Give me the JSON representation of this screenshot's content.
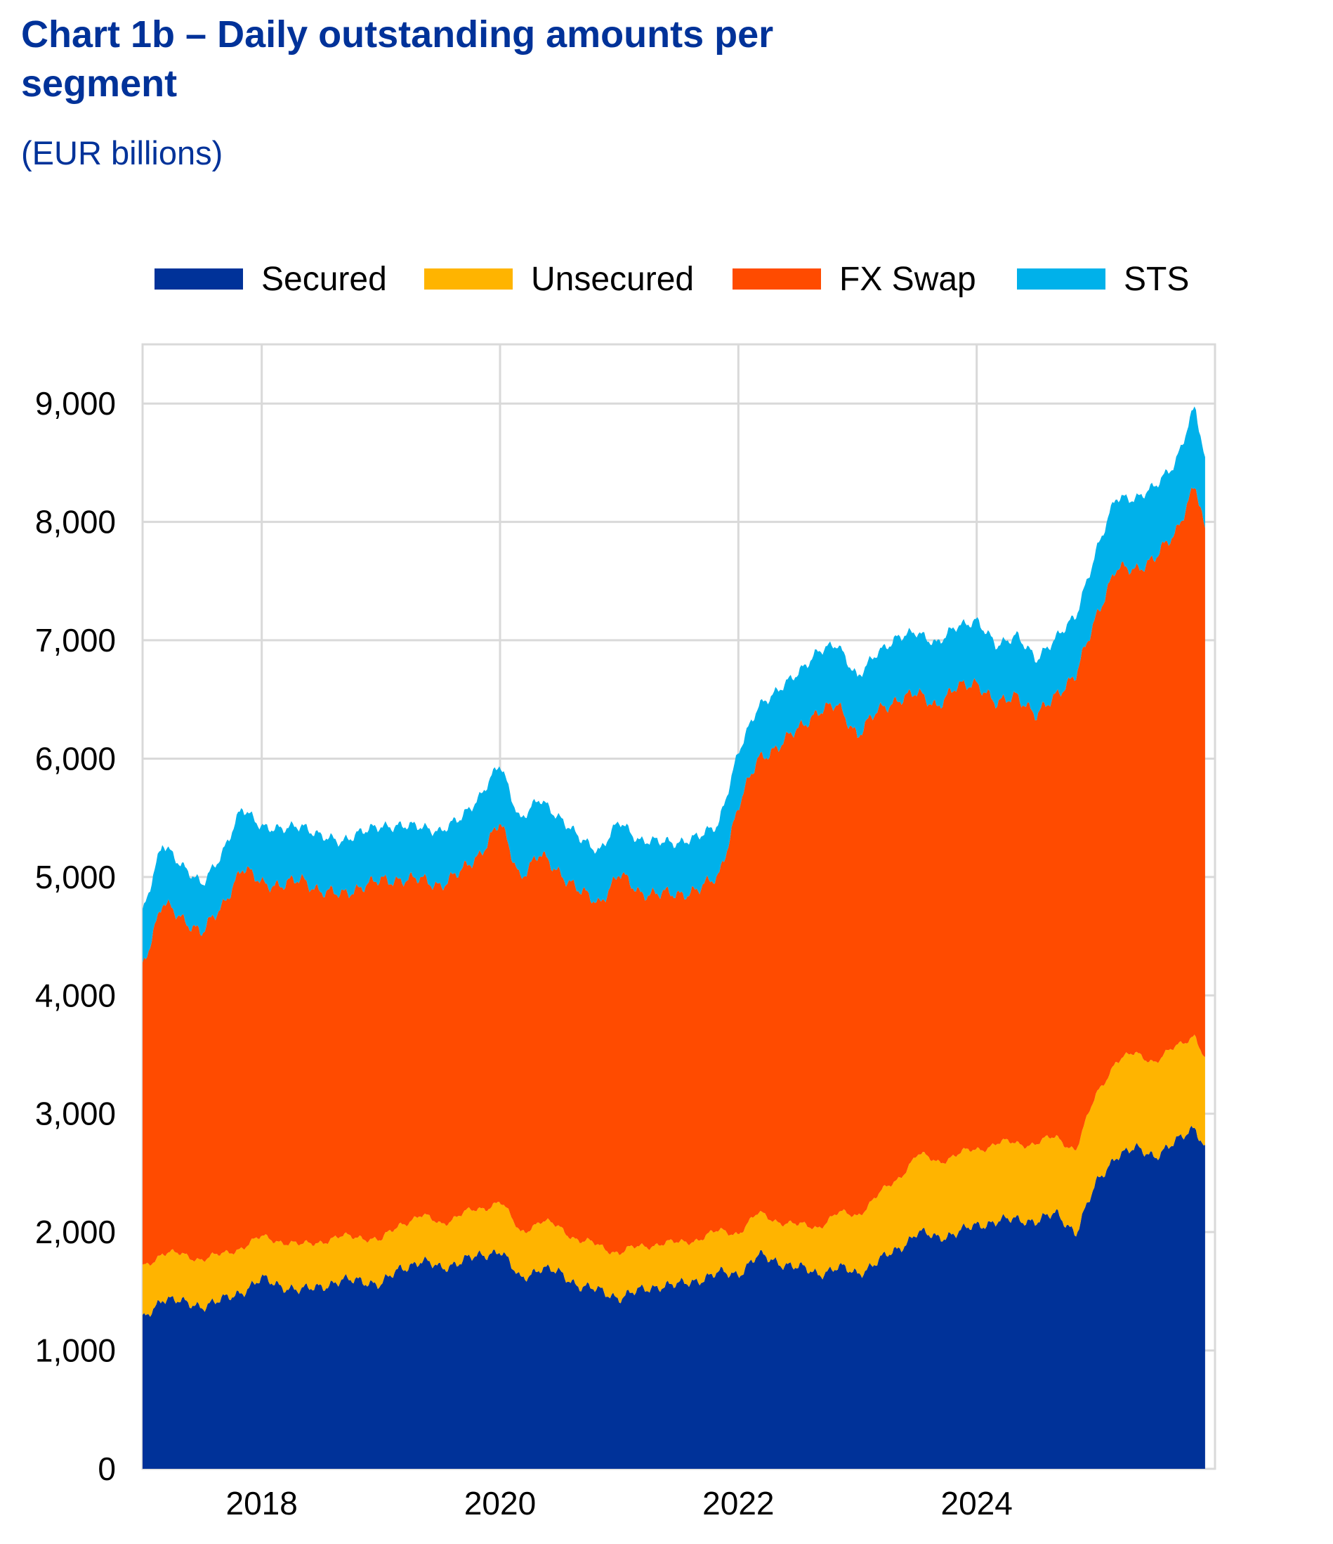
{
  "title": "Chart 1b – Daily outstanding amounts per segment",
  "subtitle": "(EUR billions)",
  "colors": {
    "secured": "#003299",
    "unsecured": "#FFB400",
    "fx_swap": "#FF4B00",
    "sts": "#00B1EA",
    "grid": "#D9D9D9",
    "title": "#003299"
  },
  "chart_data": {
    "type": "area",
    "stacked": true,
    "title": "Chart 1b – Daily outstanding amounts per segment",
    "ylabel": "(EUR billions)",
    "xlabel": "",
    "x_ticks": [
      "2018",
      "2020",
      "2022",
      "2024"
    ],
    "y_ticks": [
      "0",
      "1,000",
      "2,000",
      "3,000",
      "4,000",
      "5,000",
      "6,000",
      "7,000",
      "8,000",
      "9,000"
    ],
    "ylim": [
      0,
      9500
    ],
    "xlim": [
      "2017-01",
      "2025-12"
    ],
    "grid": true,
    "legend_position": "top",
    "x": [
      "2017-01",
      "2017-03",
      "2017-05",
      "2017-07",
      "2017-09",
      "2017-11",
      "2018-01",
      "2018-03",
      "2018-05",
      "2018-07",
      "2018-09",
      "2018-11",
      "2019-01",
      "2019-03",
      "2019-05",
      "2019-07",
      "2019-09",
      "2019-11",
      "2020-01",
      "2020-03",
      "2020-05",
      "2020-07",
      "2020-09",
      "2020-11",
      "2021-01",
      "2021-03",
      "2021-05",
      "2021-07",
      "2021-09",
      "2021-11",
      "2022-01",
      "2022-03",
      "2022-05",
      "2022-07",
      "2022-09",
      "2022-11",
      "2023-01",
      "2023-03",
      "2023-05",
      "2023-07",
      "2023-09",
      "2023-11",
      "2024-01",
      "2024-03",
      "2024-05",
      "2024-07",
      "2024-09",
      "2024-11",
      "2025-01",
      "2025-03",
      "2025-05",
      "2025-07",
      "2025-09",
      "2025-11",
      "2025-12"
    ],
    "series": [
      {
        "name": "Secured",
        "color": "#003299",
        "values": [
          1250,
          1450,
          1400,
          1380,
          1420,
          1500,
          1600,
          1550,
          1500,
          1550,
          1580,
          1600,
          1550,
          1700,
          1750,
          1700,
          1750,
          1800,
          1850,
          1600,
          1700,
          1650,
          1550,
          1500,
          1450,
          1500,
          1550,
          1550,
          1600,
          1650,
          1650,
          1800,
          1750,
          1700,
          1650,
          1700,
          1650,
          1750,
          1850,
          2000,
          1950,
          2000,
          2050,
          2100,
          2100,
          2100,
          2150,
          2000,
          2400,
          2650,
          2700,
          2650,
          2750,
          2900,
          2700
        ]
      },
      {
        "name": "Unsecured",
        "color": "#FFB400",
        "values": [
          450,
          380,
          400,
          400,
          380,
          380,
          350,
          380,
          380,
          380,
          370,
          370,
          370,
          380,
          380,
          380,
          390,
          400,
          410,
          400,
          390,
          390,
          380,
          380,
          380,
          370,
          360,
          350,
          350,
          350,
          350,
          350,
          350,
          350,
          400,
          450,
          500,
          550,
          600,
          650,
          650,
          650,
          650,
          650,
          650,
          650,
          650,
          700,
          750,
          800,
          800,
          800,
          800,
          780,
          750
        ]
      },
      {
        "name": "FX Swap",
        "color": "#FF4B00",
        "values": [
          2550,
          2950,
          2850,
          2750,
          2950,
          3200,
          3000,
          3000,
          3100,
          2950,
          2900,
          2950,
          3050,
          2900,
          2850,
          2850,
          2900,
          3000,
          3200,
          3000,
          3100,
          3000,
          2950,
          2900,
          3200,
          3000,
          2950,
          2950,
          2950,
          3000,
          3600,
          3850,
          4000,
          4200,
          4350,
          4300,
          4050,
          4100,
          4050,
          3900,
          3850,
          3950,
          3950,
          3700,
          3800,
          3600,
          3750,
          4000,
          4050,
          4150,
          4100,
          4250,
          4350,
          4650,
          4450
        ]
      },
      {
        "name": "STS",
        "color": "#00B1EA",
        "values": [
          450,
          500,
          450,
          400,
          450,
          500,
          480,
          470,
          460,
          460,
          450,
          460,
          460,
          450,
          450,
          450,
          460,
          480,
          500,
          480,
          470,
          460,
          450,
          440,
          440,
          440,
          440,
          440,
          440,
          450,
          450,
          450,
          470,
          480,
          500,
          520,
          480,
          500,
          520,
          520,
          520,
          520,
          520,
          500,
          500,
          480,
          480,
          500,
          550,
          600,
          600,
          600,
          600,
          650,
          600
        ]
      }
    ]
  }
}
